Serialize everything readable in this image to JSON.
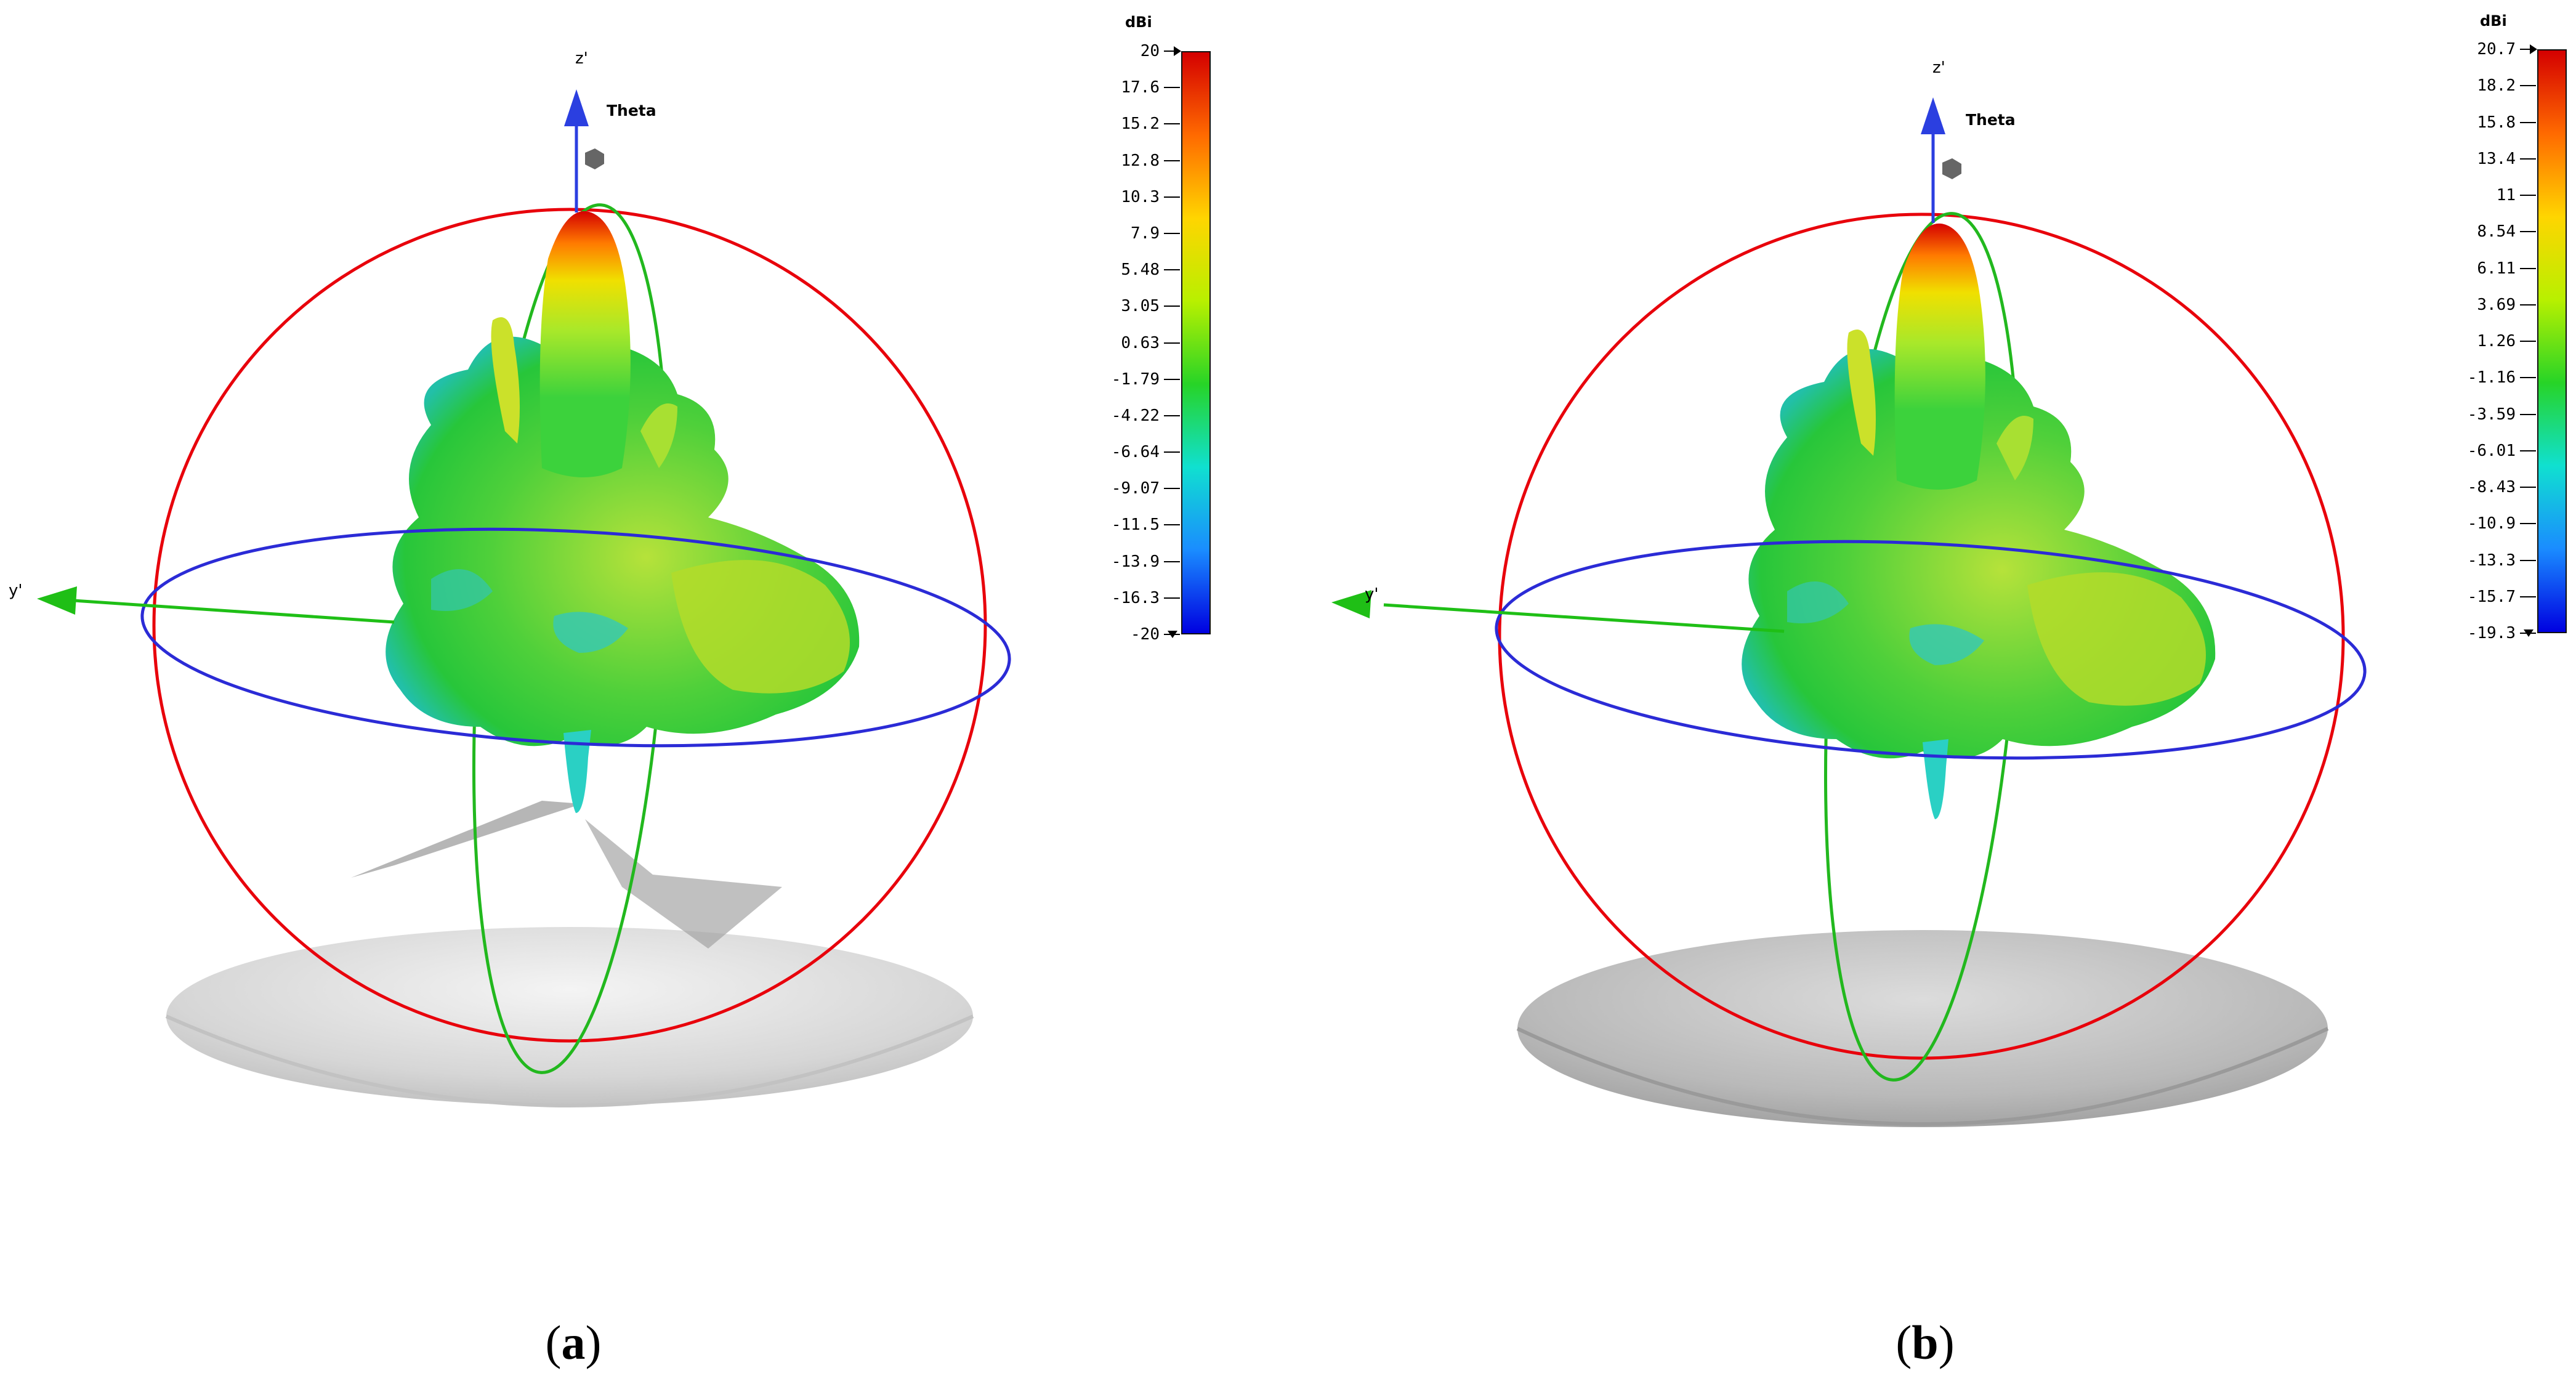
{
  "panels": [
    {
      "id": "a",
      "caption_open": "(",
      "caption_letter": "a",
      "caption_close": ")",
      "axes": {
        "z": "z'",
        "y": "y'",
        "theta": "Theta"
      },
      "colorbar": {
        "unit": "dBi",
        "ticks": [
          "20",
          "17.6",
          "15.2",
          "12.8",
          "10.3",
          "7.9",
          "5.48",
          "3.05",
          "0.63",
          "-1.79",
          "-4.22",
          "-6.64",
          "-9.07",
          "-11.5",
          "-13.9",
          "-16.3",
          "-20"
        ],
        "max": 20,
        "min": -20
      }
    },
    {
      "id": "b",
      "caption_open": "(",
      "caption_letter": "b",
      "caption_close": ")",
      "axes": {
        "z": "z'",
        "y": "y'",
        "theta": "Theta"
      },
      "colorbar": {
        "unit": "dBi",
        "ticks": [
          "20.7",
          "18.2",
          "15.8",
          "13.4",
          "11",
          "8.54",
          "6.11",
          "3.69",
          "1.26",
          "-1.16",
          "-3.59",
          "-6.01",
          "-8.43",
          "-10.9",
          "-13.3",
          "-15.7",
          "-19.3"
        ],
        "max": 20.7,
        "min": -19.3
      }
    }
  ],
  "colors": {
    "sphere_meridian": "#e8000b",
    "sphere_equator": "#2b2bd6",
    "theta_circle": "#22b81e",
    "z_axis": "#2b3fe0",
    "y_axis": "#1fbf16",
    "colormap": [
      "#d40000",
      "#ff6a00",
      "#ffd500",
      "#b8f000",
      "#27d427",
      "#10e0d0",
      "#1a8cff",
      "#0000e0"
    ]
  }
}
